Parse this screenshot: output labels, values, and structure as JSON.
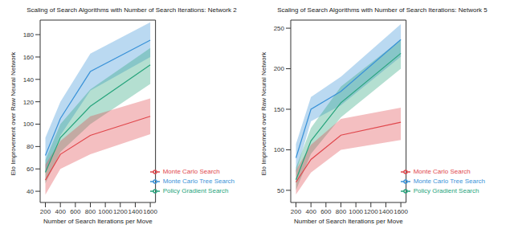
{
  "chart_data": [
    {
      "type": "line",
      "title": "Scaling of Search Algorithms with Number of Search Iterations: Network 2",
      "x_label": "Number of Search Iterations per Move",
      "y_label": "Elo Improvement over Raw Neural Network",
      "x": [
        200,
        400,
        800,
        1600
      ],
      "xlim": [
        130,
        1670
      ],
      "xticks": [
        200,
        400,
        600,
        800,
        1000,
        1200,
        1400,
        1600
      ],
      "ylim": [
        30,
        193
      ],
      "yticks": [
        40,
        60,
        80,
        100,
        120,
        140,
        160,
        180
      ],
      "legend": "lower right",
      "grid": false,
      "series": [
        {
          "name": "Monte Carlo Tree Search",
          "color": "#3a92d8",
          "values": [
            72,
            105,
            147,
            175
          ],
          "lower": [
            57,
            90,
            130,
            160
          ],
          "upper": [
            88,
            120,
            163,
            191
          ]
        },
        {
          "name": "Policy Gradient Search",
          "color": "#27a47c",
          "values": [
            57,
            88,
            116,
            153
          ],
          "lower": [
            47,
            75,
            100,
            136
          ],
          "upper": [
            68,
            100,
            131,
            168
          ]
        },
        {
          "name": "Monte Carlo Search",
          "color": "#e0474c",
          "values": [
            50,
            73,
            90,
            107
          ],
          "lower": [
            37,
            60,
            73,
            91
          ],
          "upper": [
            64,
            85,
            107,
            123
          ]
        }
      ]
    },
    {
      "type": "line",
      "title": "Scaling of Search Algorithms with Number of Search Iterations: Network 5",
      "x_label": "Number of Search Iterations per Move",
      "y_label": "Elo Improvement over Raw Neural Network",
      "x": [
        200,
        400,
        800,
        1600
      ],
      "xlim": [
        130,
        1670
      ],
      "xticks": [
        200,
        400,
        600,
        800,
        1000,
        1200,
        1400,
        1600
      ],
      "ylim": [
        35,
        260
      ],
      "yticks": [
        50,
        100,
        150,
        200,
        250
      ],
      "legend": "lower right",
      "grid": false,
      "series": [
        {
          "name": "Monte Carlo Tree Search",
          "color": "#3a92d8",
          "values": [
            90,
            150,
            172,
            236
          ],
          "lower": [
            72,
            135,
            155,
            215
          ],
          "upper": [
            107,
            165,
            190,
            255
          ]
        },
        {
          "name": "Policy Gradient Search",
          "color": "#27a47c",
          "values": [
            63,
            111,
            158,
            219
          ],
          "lower": [
            50,
            95,
            140,
            200
          ],
          "upper": [
            78,
            127,
            178,
            236
          ]
        },
        {
          "name": "Monte Carlo Search",
          "color": "#e0474c",
          "values": [
            60,
            88,
            118,
            134
          ],
          "lower": [
            45,
            72,
            100,
            112
          ],
          "upper": [
            75,
            106,
            138,
            152
          ]
        }
      ]
    }
  ]
}
